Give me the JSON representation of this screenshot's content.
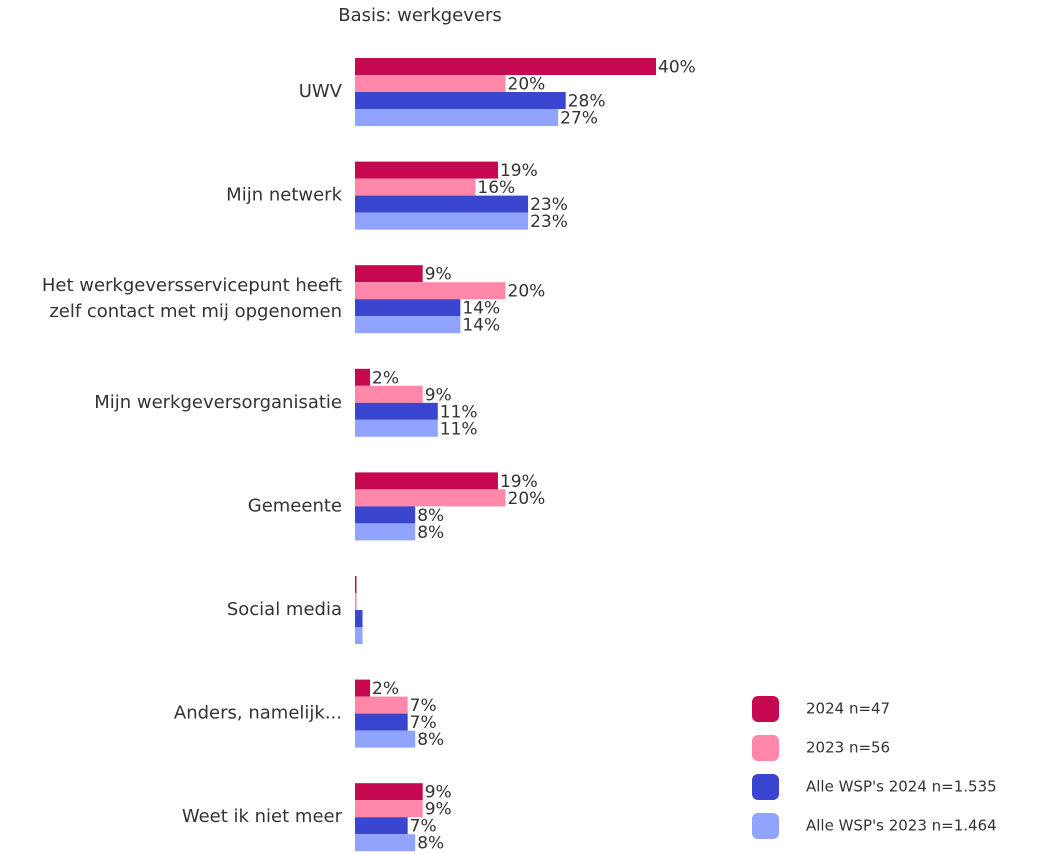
{
  "chart_data": {
    "type": "hbar",
    "title": "Basis: werkgevers",
    "categories": [
      "UWV",
      "Mijn netwerk",
      "Het werkgeversservicepunt heeft\nzelf contact met mij opgenomen",
      "Mijn werkgeversorganisatie",
      "Gemeente",
      "Social media",
      "Anders, namelijk...",
      "Weet ik niet meer"
    ],
    "xlim": [
      0,
      40
    ],
    "series": [
      {
        "name": "2024 n=47",
        "color": "#c5084f",
        "values": [
          40,
          19,
          9,
          2,
          19,
          0.2,
          2,
          9
        ],
        "value_labels": [
          "40%",
          "19%",
          "9%",
          "2%",
          "19%",
          null,
          "2%",
          "9%"
        ]
      },
      {
        "name": "2023 n=56",
        "color": "#ff87a9",
        "values": [
          20,
          16,
          20,
          9,
          20,
          0.2,
          7,
          9
        ],
        "value_labels": [
          "20%",
          "16%",
          "20%",
          "9%",
          "20%",
          null,
          "7%",
          "9%"
        ]
      },
      {
        "name": "Alle WSP's 2024 n=1.535",
        "color": "#3a45d0",
        "values": [
          28,
          23,
          14,
          11,
          8,
          1,
          7,
          7
        ],
        "value_labels": [
          "28%",
          "23%",
          "14%",
          "11%",
          "8%",
          null,
          "7%",
          "7%"
        ]
      },
      {
        "name": "Alle WSP's 2023 n=1.464",
        "color": "#90a3ff",
        "values": [
          27,
          23,
          14,
          11,
          8,
          1,
          8,
          8
        ],
        "value_labels": [
          "27%",
          "23%",
          "14%",
          "11%",
          "8%",
          null,
          "8%",
          "8%"
        ]
      }
    ],
    "legend": "bottom-right"
  }
}
